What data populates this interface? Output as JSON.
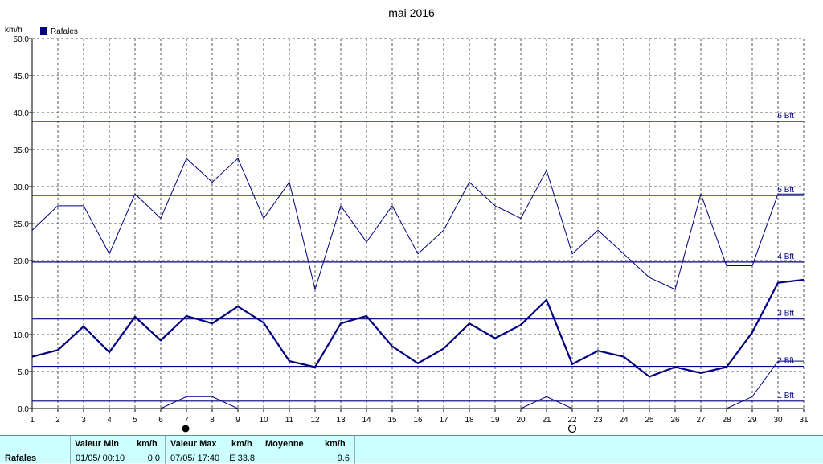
{
  "chart_data": {
    "type": "line",
    "title": "mai 2016",
    "ylabel": "km/h",
    "ylim": [
      0,
      50
    ],
    "yticks": [
      "0.0",
      "5.0",
      "10.0",
      "15.0",
      "20.0",
      "25.0",
      "30.0",
      "35.0",
      "40.0",
      "45.0",
      "50.0"
    ],
    "x": [
      1,
      2,
      3,
      4,
      5,
      6,
      7,
      8,
      9,
      10,
      11,
      12,
      13,
      14,
      15,
      16,
      17,
      18,
      19,
      20,
      21,
      22,
      23,
      24,
      25,
      26,
      27,
      28,
      29,
      30,
      31
    ],
    "legend": {
      "label": "Rafales",
      "color": "#000080",
      "placement": "top-left"
    },
    "grid": true,
    "series": [
      {
        "name": "Rafales",
        "values": [
          24.1,
          27.4,
          27.4,
          20.9,
          29.0,
          25.7,
          33.8,
          30.6,
          33.8,
          25.7,
          30.6,
          16.1,
          27.4,
          22.5,
          27.4,
          20.9,
          24.1,
          30.6,
          27.4,
          25.7,
          32.2,
          20.9,
          24.1,
          20.9,
          17.7,
          16.1,
          29.0,
          19.3,
          19.3,
          29.0,
          29.0
        ]
      },
      {
        "values": [
          7.0,
          7.9,
          11.1,
          7.6,
          12.4,
          9.2,
          12.5,
          11.5,
          13.8,
          11.6,
          6.4,
          5.6,
          11.5,
          12.5,
          8.4,
          6.1,
          8.1,
          11.5,
          9.5,
          11.3,
          14.7,
          6.0,
          7.8,
          7.0,
          4.3,
          5.6,
          4.8,
          5.6,
          10.3,
          17.0,
          17.4
        ]
      },
      {
        "values": [
          0,
          0,
          0,
          0,
          0,
          0,
          1.6,
          1.6,
          0,
          0,
          0,
          0,
          0,
          0,
          0,
          0,
          0,
          0,
          0,
          0,
          1.6,
          0,
          0,
          0,
          0,
          0,
          0,
          0,
          1.6,
          6.4,
          6.4
        ]
      }
    ],
    "beaufort": [
      {
        "label": "1 Bft",
        "value": 1.0
      },
      {
        "label": "2 Bft",
        "value": 5.7
      },
      {
        "label": "3 Bft",
        "value": 12.1
      },
      {
        "label": "4 Bft",
        "value": 19.8
      },
      {
        "label": "5 Bft",
        "value": 28.8
      },
      {
        "label": "6 Bft",
        "value": 38.8
      }
    ],
    "moon_markers": [
      {
        "day": 7,
        "phase": "new-moon"
      },
      {
        "day": 22,
        "phase": "full-moon"
      }
    ]
  },
  "footer": {
    "row_label": "Rafales",
    "min_header": "Valeur Min",
    "min_unit": "km/h",
    "min_date": "01/05/  00:10",
    "min_value": "0.0",
    "max_header": "Valeur Max",
    "max_unit": "km/h",
    "max_date": "07/05/  17:40",
    "max_value": "E 33.8",
    "avg_header": "Moyenne",
    "avg_unit": "km/h",
    "avg_value": "9.6"
  },
  "colors": {
    "series": "#000080",
    "footer_bg": "#ccffff"
  }
}
